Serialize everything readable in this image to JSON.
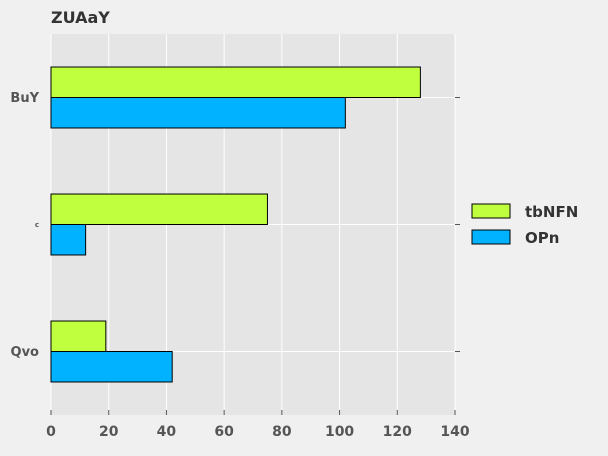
{
  "chart_data": {
    "type": "bar",
    "orientation": "horizontal",
    "title": "ZUAaY",
    "categories": [
      "BuY",
      "c",
      "Qvo"
    ],
    "series": [
      {
        "name": "tbNFN",
        "color": "#c0ff3e",
        "values": [
          128,
          75,
          19
        ]
      },
      {
        "name": "OPn",
        "color": "#00b2ff",
        "values": [
          102,
          12,
          42
        ]
      }
    ],
    "xlabel": "",
    "ylabel": "",
    "xlim": [
      0,
      140
    ],
    "xticks": [
      "0",
      "20",
      "40",
      "60",
      "80",
      "100",
      "120",
      "140"
    ],
    "grid": true,
    "legend_position": "right"
  }
}
